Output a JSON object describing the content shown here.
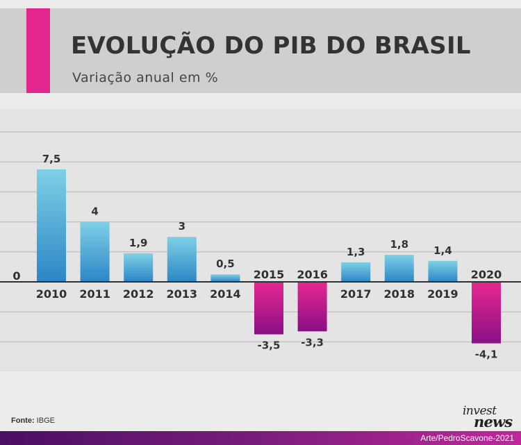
{
  "header": {
    "title": "EVOLUÇÃO DO PIB DO BRASIL",
    "subtitle": "Variação anual em %"
  },
  "colors": {
    "accent": "#e3268f",
    "positive_top": "#7fd0e6",
    "positive_bottom": "#2b86c6",
    "negative_top": "#e6288f",
    "negative_bottom": "#8a0f86"
  },
  "chart_data": {
    "type": "bar",
    "categories": [
      "2010",
      "2011",
      "2012",
      "2013",
      "2014",
      "2015",
      "2016",
      "2017",
      "2018",
      "2019",
      "2020"
    ],
    "values": [
      7.5,
      4,
      1.9,
      3,
      0.5,
      -3.5,
      -3.3,
      1.3,
      1.8,
      1.4,
      -4.1
    ],
    "value_labels": [
      "7,5",
      "4",
      "1,9",
      "3",
      "0,5",
      "-3,5",
      "-3,3",
      "1,3",
      "1,8",
      "1,4",
      "-4,1"
    ],
    "zero_label": "0",
    "ylim": [
      -5.2,
      10.5
    ],
    "grid": true,
    "gridlines": [
      -4,
      -2,
      2,
      4,
      6,
      8,
      10
    ]
  },
  "footer": {
    "source_label": "Fonte:",
    "source_value": "IBGE",
    "logo_top": "invest",
    "logo_bottom": "news",
    "credit": "Arte/PedroScavone-2021"
  }
}
